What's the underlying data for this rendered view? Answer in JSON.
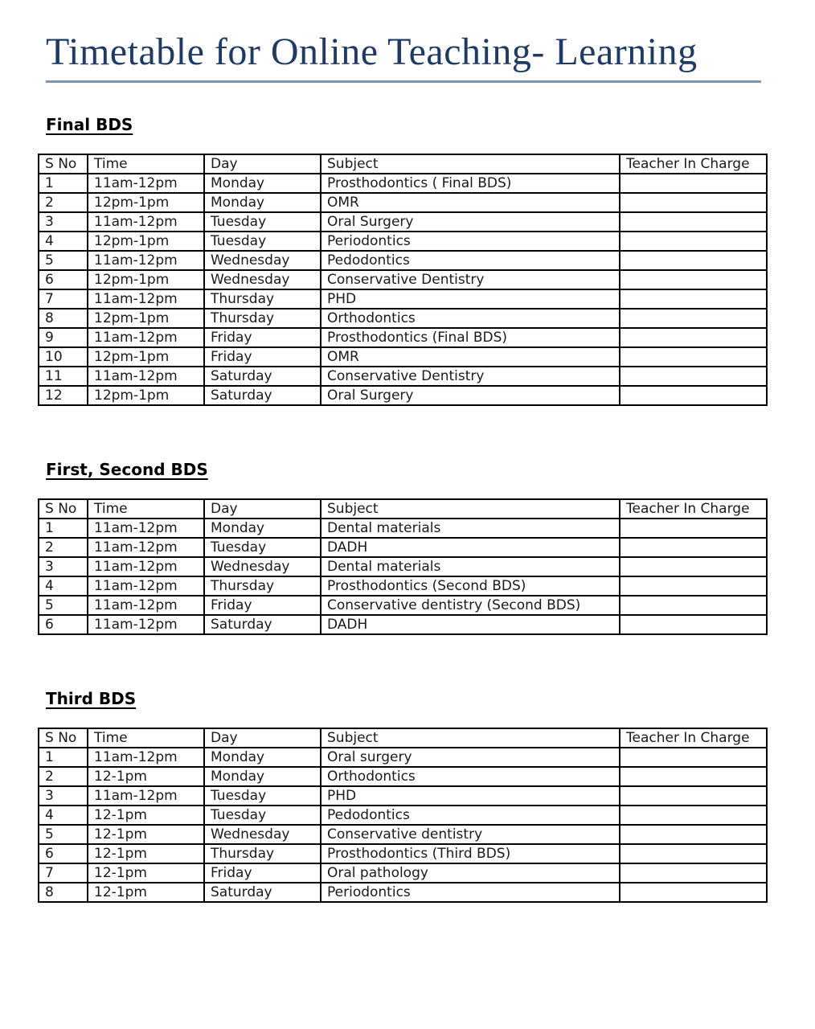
{
  "document": {
    "title": "Timetable for Online Teaching- Learning"
  },
  "columns": [
    "S No",
    "Time",
    "Day",
    "Subject",
    "Teacher In Charge"
  ],
  "sections": [
    {
      "heading": "Final BDS",
      "rows": [
        [
          "1",
          "11am-12pm",
          "Monday",
          "Prosthodontics ( Final BDS)",
          ""
        ],
        [
          "2",
          "12pm-1pm",
          "Monday",
          "OMR",
          ""
        ],
        [
          "3",
          "11am-12pm",
          "Tuesday",
          "Oral Surgery",
          ""
        ],
        [
          "4",
          "12pm-1pm",
          "Tuesday",
          "Periodontics",
          ""
        ],
        [
          "5",
          "11am-12pm",
          "Wednesday",
          "Pedodontics",
          ""
        ],
        [
          "6",
          "12pm-1pm",
          "Wednesday",
          "Conservative Dentistry",
          ""
        ],
        [
          "7",
          "11am-12pm",
          "Thursday",
          "PHD",
          ""
        ],
        [
          "8",
          "12pm-1pm",
          "Thursday",
          "Orthodontics",
          ""
        ],
        [
          "9",
          "11am-12pm",
          "Friday",
          "Prosthodontics (Final BDS)",
          ""
        ],
        [
          "10",
          "12pm-1pm",
          "Friday",
          "OMR",
          ""
        ],
        [
          "11",
          "11am-12pm",
          "Saturday",
          "Conservative Dentistry",
          ""
        ],
        [
          "12",
          "12pm-1pm",
          "Saturday",
          "Oral Surgery",
          ""
        ]
      ]
    },
    {
      "heading": "First, Second BDS",
      "rows": [
        [
          "1",
          "11am-12pm",
          "Monday",
          "Dental materials",
          ""
        ],
        [
          "2",
          "11am-12pm",
          "Tuesday",
          "DADH",
          ""
        ],
        [
          "3",
          "11am-12pm",
          "Wednesday",
          "Dental materials",
          ""
        ],
        [
          "4",
          "11am-12pm",
          "Thursday",
          "Prosthodontics (Second BDS)",
          ""
        ],
        [
          "5",
          "11am-12pm",
          "Friday",
          "Conservative dentistry (Second BDS)",
          ""
        ],
        [
          "6",
          "11am-12pm",
          "Saturday",
          "DADH",
          ""
        ]
      ]
    },
    {
      "heading": "Third BDS",
      "rows": [
        [
          "1",
          "11am-12pm",
          "Monday",
          "Oral surgery",
          ""
        ],
        [
          "2",
          "12-1pm",
          "Monday",
          "Orthodontics",
          ""
        ],
        [
          "3",
          "11am-12pm",
          "Tuesday",
          "PHD",
          ""
        ],
        [
          "4",
          "12-1pm",
          "Tuesday",
          "Pedodontics",
          ""
        ],
        [
          "5",
          "12-1pm",
          "Wednesday",
          "Conservative dentistry",
          ""
        ],
        [
          "6",
          "12-1pm",
          "Thursday",
          "Prosthodontics (Third BDS)",
          ""
        ],
        [
          "7",
          "12-1pm",
          "Friday",
          "Oral pathology",
          ""
        ],
        [
          "8",
          "12-1pm",
          "Saturday",
          "Periodontics",
          ""
        ]
      ]
    }
  ],
  "colors": {
    "title_text": "#1f3b63",
    "title_rule": "#7d97b3",
    "table_border": "#000000",
    "body_text": "#1a1a1a",
    "page_bg": "#ffffff"
  }
}
